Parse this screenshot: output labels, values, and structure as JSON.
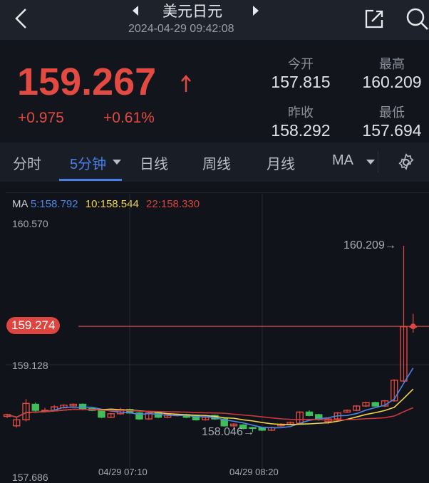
{
  "header": {
    "title": "美元日元",
    "datetime": "2024-04-29 09:42:08",
    "icons": [
      "back-icon",
      "prev-triangle-icon",
      "next-triangle-icon",
      "share-icon",
      "search-icon"
    ]
  },
  "quote": {
    "price": "159.267",
    "change": "+0.975",
    "change_pct": "+0.61%",
    "direction": "up",
    "stats": [
      {
        "label": "今开",
        "value": "157.815"
      },
      {
        "label": "最高",
        "value": "160.209"
      },
      {
        "label": "昨收",
        "value": "158.292"
      },
      {
        "label": "最低",
        "value": "157.694"
      }
    ]
  },
  "tabs": [
    {
      "label": "分时"
    },
    {
      "label": "5分钟",
      "active": true
    },
    {
      "label": "日线"
    },
    {
      "label": "周线"
    },
    {
      "label": "月线"
    },
    {
      "label": "MA"
    }
  ],
  "ma": {
    "prefix": "MA",
    "ma5": "5:158.792",
    "ma10": "10:158.544",
    "ma22": "22:158.330"
  },
  "colors": {
    "up": "#e24a42",
    "down": "#3fbf5a",
    "ma5": "#4a86e8",
    "ma10": "#f1d54a",
    "ma22": "#c9383a",
    "accent": "#4a7ee6"
  },
  "chart_data": {
    "type": "candlestick",
    "y_ticks": [
      "160.570",
      "159.128",
      "157.686"
    ],
    "x_ticks": [
      "04/29 07:10",
      "04/29 08:20"
    ],
    "current_price_label": "159.274",
    "high_marker": "160.209→",
    "low_marker": "158.046→",
    "candles": [
      [
        158.23,
        158.25,
        158.21,
        158.26
      ],
      [
        158.12,
        158.19,
        158.1,
        158.22
      ],
      [
        158.19,
        158.38,
        158.17,
        158.43
      ],
      [
        158.37,
        158.3,
        158.28,
        158.39
      ],
      [
        158.3,
        158.3,
        158.28,
        158.33
      ],
      [
        158.3,
        158.34,
        158.29,
        158.36
      ],
      [
        158.33,
        158.36,
        158.32,
        158.37
      ],
      [
        158.35,
        158.37,
        158.34,
        158.38
      ],
      [
        158.37,
        158.31,
        158.3,
        158.38
      ],
      [
        158.32,
        158.3,
        158.29,
        158.33
      ],
      [
        158.31,
        158.22,
        158.21,
        158.32
      ],
      [
        158.22,
        158.26,
        158.21,
        158.27
      ],
      [
        158.26,
        158.31,
        158.25,
        158.33
      ],
      [
        158.31,
        158.27,
        158.26,
        158.32
      ],
      [
        158.27,
        158.2,
        158.19,
        158.28
      ],
      [
        158.2,
        158.27,
        158.19,
        158.28
      ],
      [
        158.28,
        158.22,
        158.21,
        158.29
      ],
      [
        158.22,
        158.25,
        158.21,
        158.26
      ],
      [
        158.25,
        158.25,
        158.23,
        158.26
      ],
      [
        158.25,
        158.22,
        158.21,
        158.26
      ],
      [
        158.24,
        158.19,
        158.18,
        158.25
      ],
      [
        158.19,
        158.22,
        158.18,
        158.23
      ],
      [
        158.24,
        158.2,
        158.19,
        158.25
      ],
      [
        158.2,
        158.12,
        158.11,
        158.21
      ],
      [
        158.12,
        158.14,
        158.1,
        158.15
      ],
      [
        158.13,
        158.09,
        158.08,
        158.14
      ],
      [
        158.1,
        158.09,
        158.046,
        158.11
      ],
      [
        158.1,
        158.07,
        158.06,
        158.11
      ],
      [
        158.07,
        158.1,
        158.06,
        158.11
      ],
      [
        158.12,
        158.14,
        158.11,
        158.15
      ],
      [
        158.14,
        158.16,
        158.13,
        158.17
      ],
      [
        158.15,
        158.28,
        158.14,
        158.29
      ],
      [
        158.28,
        158.24,
        158.23,
        158.3
      ],
      [
        158.25,
        158.19,
        158.18,
        158.26
      ],
      [
        158.17,
        158.2,
        158.14,
        158.21
      ],
      [
        158.2,
        158.27,
        158.19,
        158.28
      ],
      [
        158.28,
        158.3,
        158.27,
        158.31
      ],
      [
        158.3,
        158.35,
        158.29,
        158.36
      ],
      [
        158.35,
        158.39,
        158.34,
        158.4
      ],
      [
        158.39,
        158.35,
        158.34,
        158.4
      ],
      [
        158.35,
        158.41,
        158.34,
        158.42
      ],
      [
        158.41,
        158.65,
        158.4,
        158.66
      ],
      [
        158.64,
        159.27,
        158.63,
        160.209
      ],
      [
        159.27,
        159.274,
        159.2,
        159.42
      ]
    ],
    "candle_fields": [
      "open",
      "close",
      "low",
      "high"
    ],
    "ma_periods": [
      5,
      10,
      22
    ],
    "grid": true
  }
}
